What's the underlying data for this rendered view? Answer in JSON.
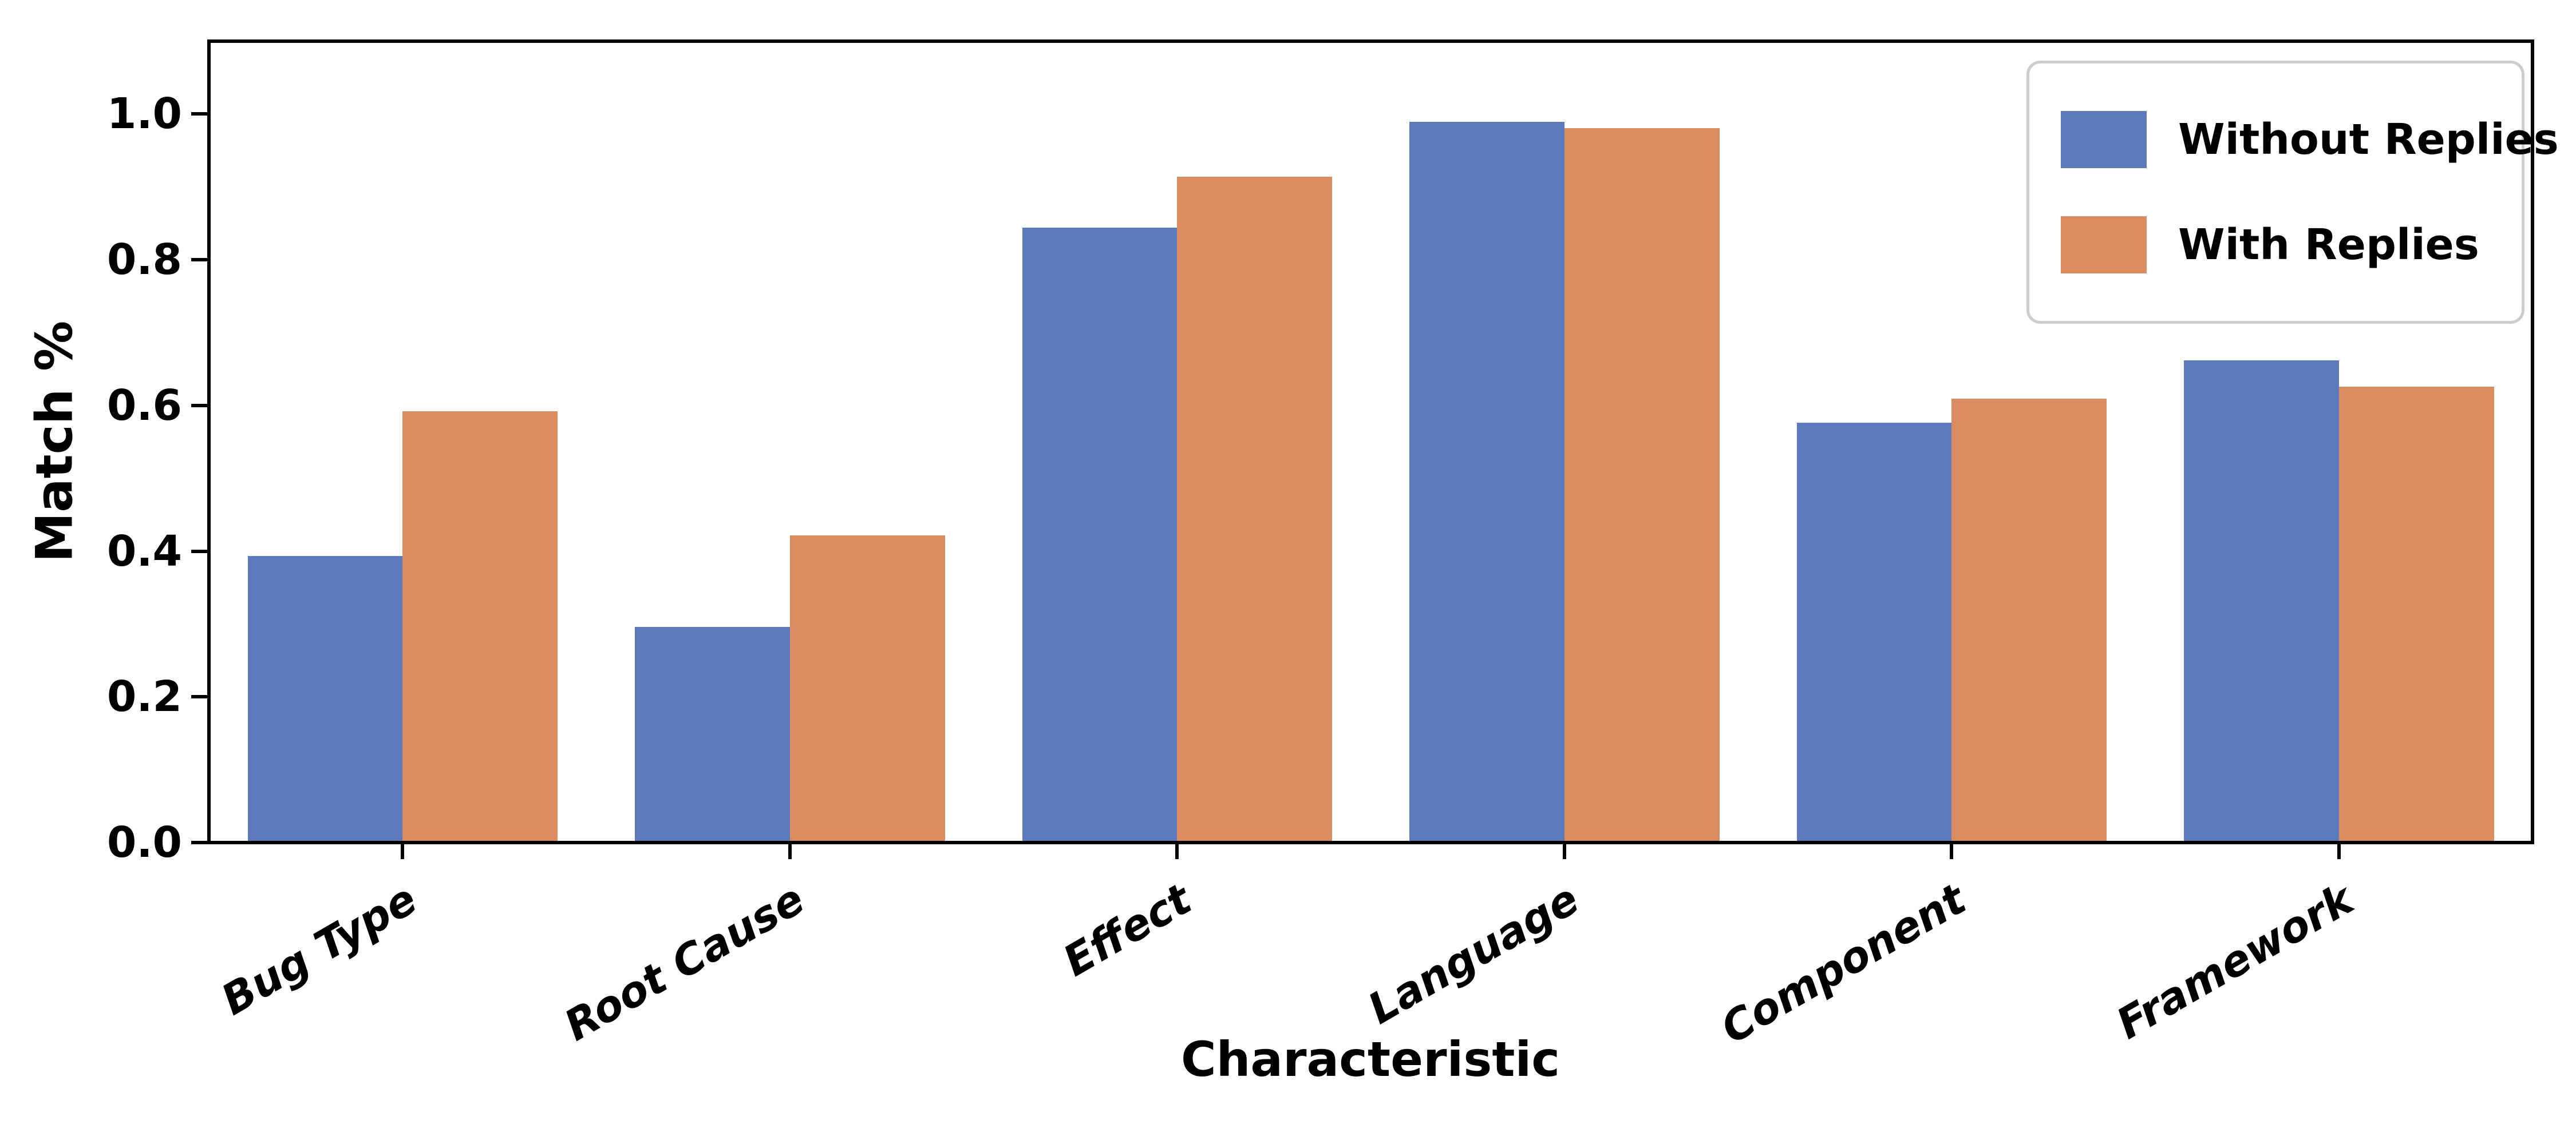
{
  "figure": {
    "background": "#ffffff"
  },
  "chart_data": {
    "type": "bar",
    "title": "",
    "xlabel": "Characteristic",
    "ylabel": "Match %",
    "categories": [
      "Bug Type",
      "Root Cause",
      "Effect",
      "Language",
      "Component",
      "Framework"
    ],
    "series": [
      {
        "name": "Without Replies",
        "color": "#5B7ABC",
        "values": [
          0.393,
          0.296,
          0.844,
          0.989,
          0.576,
          0.662
        ]
      },
      {
        "name": "With Replies",
        "color": "#D98C60",
        "values": [
          0.592,
          0.422,
          0.914,
          0.981,
          0.609,
          0.626
        ]
      }
    ],
    "ylim": [
      0,
      1.1
    ],
    "yticks": [
      0.0,
      0.2,
      0.4,
      0.6,
      0.8,
      1.0
    ],
    "ytick_labels": [
      "0.0",
      "0.2",
      "0.4",
      "0.6",
      "0.8",
      "1.0"
    ],
    "grid": false,
    "legend": {
      "position": "upper right",
      "entries": [
        "Without Replies",
        "With Replies"
      ]
    },
    "bar_group_width": 0.8,
    "x_tick_label_rotation_deg": 30
  }
}
